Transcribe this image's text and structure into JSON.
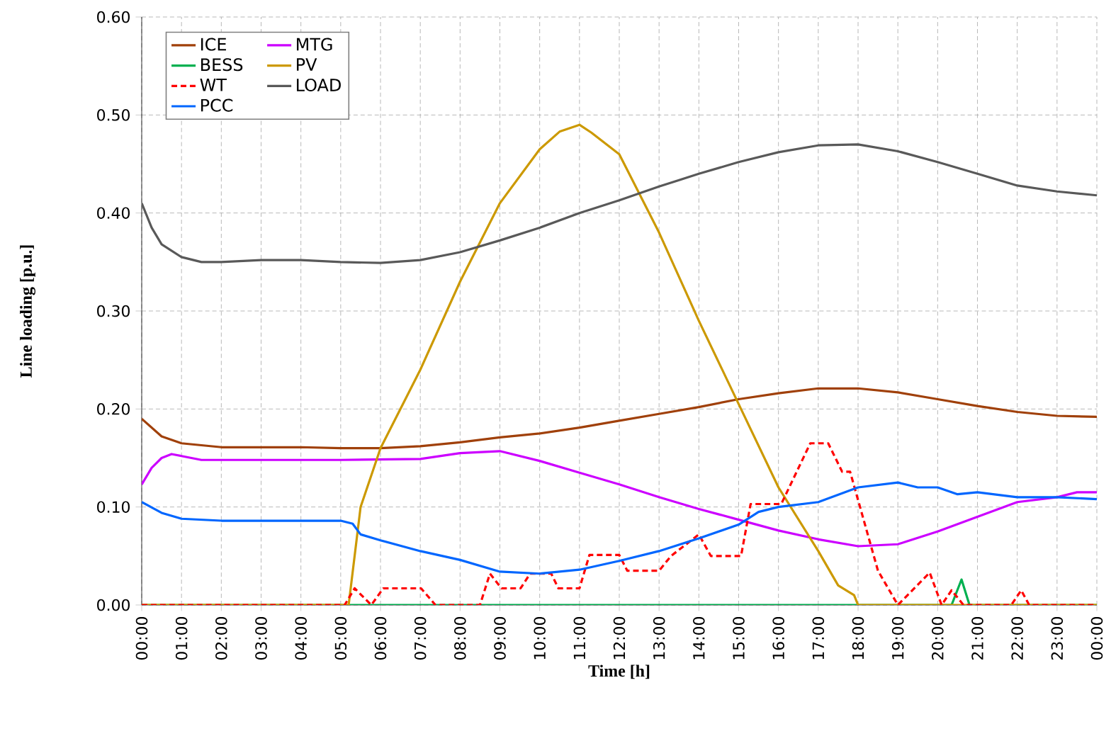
{
  "chart_data": {
    "type": "line",
    "xlabel": "Time [h]",
    "ylabel": "Line loading [p.u.]",
    "xlim": [
      0,
      24
    ],
    "ylim": [
      0,
      0.6
    ],
    "xticks": [
      {
        "value": 0,
        "label": "00:00"
      },
      {
        "value": 1,
        "label": "01:00"
      },
      {
        "value": 2,
        "label": "02:00"
      },
      {
        "value": 3,
        "label": "03:00"
      },
      {
        "value": 4,
        "label": "04:00"
      },
      {
        "value": 5,
        "label": "05:00"
      },
      {
        "value": 6,
        "label": "06:00"
      },
      {
        "value": 7,
        "label": "07:00"
      },
      {
        "value": 8,
        "label": "08:00"
      },
      {
        "value": 9,
        "label": "09:00"
      },
      {
        "value": 10,
        "label": "10:00"
      },
      {
        "value": 11,
        "label": "11:00"
      },
      {
        "value": 12,
        "label": "12:00"
      },
      {
        "value": 13,
        "label": "13:00"
      },
      {
        "value": 14,
        "label": "14:00"
      },
      {
        "value": 15,
        "label": "15:00"
      },
      {
        "value": 16,
        "label": "16:00"
      },
      {
        "value": 17,
        "label": "17:00"
      },
      {
        "value": 18,
        "label": "18:00"
      },
      {
        "value": 19,
        "label": "19:00"
      },
      {
        "value": 20,
        "label": "20:00"
      },
      {
        "value": 21,
        "label": "21:00"
      },
      {
        "value": 22,
        "label": "22:00"
      },
      {
        "value": 23,
        "label": "23:00"
      },
      {
        "value": 24,
        "label": "00:00"
      }
    ],
    "yticks": [
      {
        "value": 0,
        "label": "0.00"
      },
      {
        "value": 0.1,
        "label": "0.10"
      },
      {
        "value": 0.2,
        "label": "0.20"
      },
      {
        "value": 0.3,
        "label": "0.30"
      },
      {
        "value": 0.4,
        "label": "0.40"
      },
      {
        "value": 0.5,
        "label": "0.50"
      },
      {
        "value": 0.6,
        "label": "0.60"
      }
    ],
    "grid": true,
    "legend": "top left",
    "marker": "none",
    "series": [
      {
        "name": "ICE",
        "color": "#a0400a",
        "x": [
          0,
          0.5,
          1,
          2,
          3,
          4,
          5,
          6,
          7,
          8,
          9,
          10,
          11,
          12,
          13,
          14,
          15,
          16,
          17,
          18,
          19,
          20,
          21,
          22,
          23,
          24
        ],
        "values": [
          0.19,
          0.172,
          0.165,
          0.161,
          0.161,
          0.161,
          0.16,
          0.16,
          0.162,
          0.166,
          0.171,
          0.175,
          0.181,
          0.188,
          0.195,
          0.202,
          0.21,
          0.216,
          0.221,
          0.221,
          0.217,
          0.21,
          0.203,
          0.197,
          0.193,
          0.192
        ]
      },
      {
        "name": "MTG",
        "color": "#cc00ff",
        "x": [
          0,
          0.25,
          0.5,
          0.75,
          1,
          1.5,
          2,
          5,
          7,
          8,
          9,
          10,
          11,
          12,
          13,
          14,
          15,
          16,
          17,
          18,
          19,
          20,
          21,
          22,
          23,
          23.5,
          24
        ],
        "values": [
          0.123,
          0.14,
          0.15,
          0.154,
          0.152,
          0.148,
          0.148,
          0.148,
          0.149,
          0.155,
          0.157,
          0.147,
          0.135,
          0.123,
          0.11,
          0.098,
          0.087,
          0.076,
          0.067,
          0.06,
          0.062,
          0.075,
          0.09,
          0.105,
          0.11,
          0.115,
          0.115
        ]
      },
      {
        "name": "BESS",
        "color": "#00b050",
        "x": [
          0,
          20.35,
          20.6,
          20.8,
          24
        ],
        "values": [
          0,
          0,
          0.026,
          0,
          0
        ]
      },
      {
        "name": "PV",
        "color": "#cc9900",
        "x": [
          0,
          5.2,
          5.5,
          6,
          7,
          8,
          9,
          10,
          10.5,
          11,
          11.3,
          12,
          13,
          14,
          15,
          16,
          17,
          17.5,
          17.9,
          18,
          24
        ],
        "values": [
          0,
          0,
          0.1,
          0.16,
          0.24,
          0.33,
          0.41,
          0.465,
          0.483,
          0.49,
          0.482,
          0.46,
          0.38,
          0.29,
          0.205,
          0.12,
          0.055,
          0.02,
          0.01,
          0,
          0
        ]
      },
      {
        "name": "WT",
        "color": "#ff0000",
        "line_style": "dashed",
        "x": [
          0,
          5.1,
          5.35,
          5.77,
          6.07,
          7.02,
          7.38,
          8.5,
          8.75,
          9.04,
          9.52,
          9.76,
          10.29,
          10.47,
          11.0,
          11.25,
          12.0,
          12.2,
          13.0,
          13.3,
          14.0,
          14.3,
          15.06,
          15.3,
          16.07,
          16.8,
          17.25,
          17.6,
          17.8,
          18.5,
          19.0,
          19.8,
          20.1,
          20.35,
          20.65,
          21.85,
          22.1,
          22.3,
          24
        ],
        "values": [
          0,
          0,
          0.017,
          0,
          0.017,
          0.017,
          0,
          0,
          0.032,
          0.017,
          0.017,
          0.032,
          0.032,
          0.017,
          0.017,
          0.051,
          0.051,
          0.035,
          0.035,
          0.05,
          0.072,
          0.05,
          0.05,
          0.103,
          0.103,
          0.165,
          0.165,
          0.136,
          0.136,
          0.035,
          0,
          0.033,
          0,
          0.015,
          0,
          0,
          0.015,
          0,
          0
        ]
      },
      {
        "name": "LOAD",
        "color": "#595959",
        "x": [
          0,
          0.25,
          0.5,
          1,
          1.5,
          2,
          3,
          4,
          5,
          6,
          7,
          8,
          9,
          10,
          11,
          12,
          13,
          14,
          15,
          16,
          17,
          18,
          19,
          20,
          21,
          22,
          23,
          24
        ],
        "values": [
          0.41,
          0.385,
          0.368,
          0.355,
          0.35,
          0.35,
          0.352,
          0.352,
          0.35,
          0.349,
          0.352,
          0.36,
          0.372,
          0.385,
          0.4,
          0.413,
          0.427,
          0.44,
          0.452,
          0.462,
          0.469,
          0.47,
          0.463,
          0.452,
          0.44,
          0.428,
          0.422,
          0.418
        ]
      },
      {
        "name": "PCC",
        "color": "#0066ff",
        "x": [
          0,
          0.5,
          1,
          2,
          3,
          4,
          5,
          5.3,
          5.5,
          6,
          7,
          8,
          9,
          10,
          11,
          12,
          13,
          14,
          15,
          15.5,
          16,
          17,
          18,
          19,
          19.5,
          20,
          20.5,
          21,
          22,
          23,
          24
        ],
        "values": [
          0.105,
          0.094,
          0.088,
          0.086,
          0.086,
          0.086,
          0.086,
          0.083,
          0.072,
          0.066,
          0.055,
          0.046,
          0.034,
          0.032,
          0.036,
          0.045,
          0.055,
          0.068,
          0.082,
          0.095,
          0.1,
          0.105,
          0.12,
          0.125,
          0.12,
          0.12,
          0.113,
          0.115,
          0.11,
          0.11,
          0.108
        ]
      }
    ]
  }
}
